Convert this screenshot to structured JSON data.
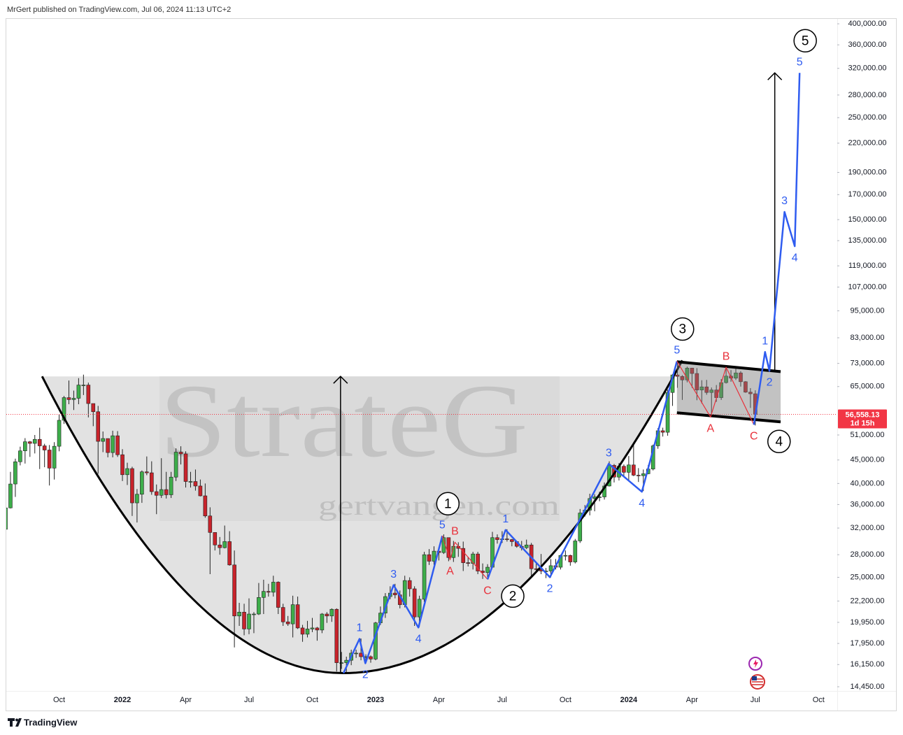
{
  "chart_data": {
    "type": "candlestick",
    "byline": "MrGert published on TradingView.com, Jul 06, 2024 11:13 UTC+2",
    "branding": "TradingView",
    "watermark": {
      "title": "StrateG",
      "url": "gertvangen.com"
    },
    "log": true,
    "grid": false,
    "up_color": "#3dae4a",
    "down_color": "#c8232b",
    "wick_color": "#222222",
    "ylim": [
      14150,
      410000
    ],
    "yticks": [
      {
        "value": 400000,
        "label": "400,000.00"
      },
      {
        "value": 360000,
        "label": "360,000.00"
      },
      {
        "value": 320000,
        "label": "320,000.00"
      },
      {
        "value": 280000,
        "label": "280,000.00"
      },
      {
        "value": 250000,
        "label": "250,000.00"
      },
      {
        "value": 220000,
        "label": "220,000.00"
      },
      {
        "value": 190000,
        "label": "190,000.00"
      },
      {
        "value": 170000,
        "label": "170,000.00"
      },
      {
        "value": 150000,
        "label": "150,000.00"
      },
      {
        "value": 135000,
        "label": "135,000.00"
      },
      {
        "value": 119000,
        "label": "119,000.00"
      },
      {
        "value": 107000,
        "label": "107,000.00"
      },
      {
        "value": 95000,
        "label": "95,000.00"
      },
      {
        "value": 83000,
        "label": "83,000.00"
      },
      {
        "value": 73000,
        "label": "73,000.00"
      },
      {
        "value": 65000,
        "label": "65,000.00"
      },
      {
        "value": 51000,
        "label": "51,000.00"
      },
      {
        "value": 45000,
        "label": "45,000.00"
      },
      {
        "value": 40000,
        "label": "40,000.00"
      },
      {
        "value": 36000,
        "label": "36,000.00"
      },
      {
        "value": 32000,
        "label": "32,000.00"
      },
      {
        "value": 28000,
        "label": "28,000.00"
      },
      {
        "value": 25000,
        "label": "25,000.00"
      },
      {
        "value": 22200,
        "label": "22,200.00"
      },
      {
        "value": 19950,
        "label": "19,950.00"
      },
      {
        "value": 17950,
        "label": "17,950.00"
      },
      {
        "value": 16150,
        "label": "16,150.00"
      },
      {
        "value": 14450,
        "label": "14,450.00"
      }
    ],
    "categories": [
      null,
      null,
      null,
      null,
      null,
      null,
      null,
      null,
      null,
      null,
      null,
      "Oct",
      null,
      null,
      null,
      null,
      null,
      null,
      null,
      null,
      null,
      null,
      null,
      null,
      "2022",
      null,
      null,
      null,
      null,
      null,
      null,
      null,
      null,
      null,
      null,
      null,
      null,
      "Apr",
      null,
      null,
      null,
      null,
      null,
      null,
      null,
      null,
      null,
      null,
      null,
      null,
      "Jul",
      null,
      null,
      null,
      null,
      null,
      null,
      null,
      null,
      null,
      null,
      null,
      null,
      "Oct",
      null,
      null,
      null,
      null,
      null,
      null,
      null,
      null,
      null,
      null,
      null,
      null,
      "2023",
      null,
      null,
      null,
      null,
      null,
      null,
      null,
      null,
      null,
      null,
      null,
      null,
      "Apr",
      null,
      null,
      null,
      null,
      null,
      null,
      null,
      null,
      null,
      null,
      null,
      null,
      "Jul",
      null,
      null,
      null,
      null,
      null,
      null,
      null,
      null,
      null,
      null,
      null,
      null,
      "Oct",
      null,
      null,
      null,
      null,
      null,
      null,
      null,
      null,
      null,
      null,
      null,
      null,
      "2024",
      null,
      null,
      null,
      null,
      null,
      null,
      null,
      null,
      null,
      null,
      null,
      null,
      "Apr",
      null,
      null,
      null,
      null,
      null,
      null,
      null,
      null,
      null,
      null,
      null,
      null,
      "Jul",
      null,
      null,
      null,
      null,
      null,
      null,
      null,
      null,
      null,
      null,
      null,
      null,
      "Oct",
      null,
      null,
      null,
      null
    ],
    "candles": {
      "open": [
        31800,
        35400,
        39900,
        44600,
        47100,
        49300,
        48900,
        49900,
        48300,
        47300,
        43200,
        48200,
        54900,
        61500,
        60900,
        61300,
        65500,
        65500,
        59700,
        57300,
        49400,
        50100,
        46700,
        50800,
        46200,
        41800,
        43100,
        36300,
        37900,
        42400,
        42200,
        38400,
        37700,
        38800,
        37800,
        41300,
        46800,
        46400,
        40400,
        40400,
        39500,
        37600,
        34000,
        31300,
        29400,
        29000,
        29900,
        26600,
        20600,
        21000,
        19300,
        20800,
        20800,
        22600,
        23300,
        23200,
        24400,
        21500,
        20000,
        19800,
        21800,
        19400,
        18800,
        19300,
        19400,
        19200,
        20800,
        20600,
        21300,
        16300,
        16300,
        16500,
        17100,
        17100,
        16800,
        16800,
        16600,
        19900,
        20900,
        22700,
        23100,
        22900,
        21800,
        24600,
        23600,
        20500,
        22400,
        28000,
        27100,
        28500,
        28300,
        30500,
        27600,
        29200,
        28900,
        26900,
        26800,
        28100,
        25800,
        25600,
        26300,
        30500,
        30200,
        30300,
        30200,
        29900,
        29200,
        29000,
        29400,
        26100,
        26000,
        25800,
        25800,
        26500,
        26300,
        27900,
        27900,
        27000,
        30000,
        34500,
        35000,
        37100,
        37400,
        37400,
        39500,
        43800,
        41300,
        43600,
        42300,
        43900,
        41700,
        41600,
        42000,
        43000,
        48300,
        52100,
        51700,
        63100,
        68900,
        68400,
        67200,
        71300,
        69400,
        63900,
        64900,
        63100,
        63900,
        61500,
        66300,
        68500,
        67800,
        69600,
        66600,
        63200,
        62700,
        null,
        null,
        null,
        null,
        null,
        null,
        null,
        null,
        null,
        null,
        null,
        null,
        null,
        null,
        null,
        null,
        null
      ],
      "high": [
        36400,
        42400,
        45300,
        48100,
        50200,
        49500,
        51000,
        52900,
        48800,
        48500,
        49200,
        56500,
        62000,
        67000,
        63700,
        67800,
        69000,
        66300,
        59500,
        59000,
        51900,
        50100,
        52100,
        52000,
        47500,
        44400,
        43500,
        38900,
        42700,
        45800,
        44700,
        39800,
        45400,
        42400,
        42400,
        47700,
        48200,
        47000,
        42400,
        42900,
        40800,
        40000,
        35500,
        31300,
        30600,
        32400,
        31500,
        28600,
        22000,
        21900,
        22500,
        21000,
        24300,
        24700,
        24200,
        25200,
        24500,
        21900,
        20600,
        22800,
        22700,
        19700,
        20100,
        20400,
        19500,
        20900,
        21000,
        21400,
        21400,
        17200,
        16800,
        17400,
        17400,
        18400,
        17000,
        16900,
        20000,
        21600,
        23100,
        23900,
        24200,
        23400,
        25200,
        25000,
        23900,
        22800,
        28400,
        28800,
        29200,
        29100,
        31000,
        30500,
        30000,
        29800,
        29900,
        27700,
        28400,
        28400,
        26800,
        26700,
        31400,
        31000,
        31500,
        31800,
        30300,
        29900,
        30000,
        30200,
        29700,
        26800,
        28100,
        26200,
        27400,
        27400,
        28000,
        28600,
        28000,
        30300,
        35200,
        35900,
        38000,
        37900,
        38400,
        40200,
        44700,
        44100,
        44300,
        44000,
        45900,
        49000,
        43200,
        42900,
        43900,
        48600,
        52800,
        52900,
        64000,
        69200,
        73800,
        68800,
        71800,
        71400,
        71300,
        67100,
        67200,
        64700,
        65500,
        67500,
        71900,
        70600,
        71900,
        70200,
        66800,
        64500,
        63800,
        null,
        null,
        null,
        null,
        null,
        null,
        null,
        null,
        null,
        null,
        null,
        null,
        null,
        null,
        null,
        null,
        null
      ],
      "low": [
        29300,
        35300,
        37400,
        43800,
        44200,
        45700,
        46500,
        43000,
        43400,
        39600,
        40800,
        47000,
        53900,
        59500,
        57800,
        59500,
        62300,
        55700,
        53300,
        42000,
        46800,
        45600,
        45600,
        45700,
        40500,
        39700,
        34000,
        32900,
        36300,
        41700,
        37800,
        34300,
        37200,
        37100,
        37200,
        40500,
        44000,
        39200,
        39200,
        38600,
        37500,
        33700,
        25400,
        28600,
        28000,
        28900,
        26500,
        17600,
        19600,
        18700,
        18800,
        18900,
        20700,
        20800,
        22700,
        22700,
        20800,
        19600,
        19600,
        18500,
        19300,
        18100,
        18500,
        19000,
        18200,
        18900,
        19900,
        20000,
        15600,
        15800,
        15500,
        16100,
        16700,
        16500,
        16300,
        16300,
        16500,
        19700,
        20400,
        22400,
        22500,
        21400,
        21500,
        22700,
        19600,
        19500,
        22100,
        26600,
        26600,
        27200,
        28100,
        27100,
        27000,
        27700,
        25800,
        26400,
        26000,
        25400,
        24800,
        25000,
        26200,
        29600,
        29700,
        29900,
        29200,
        29000,
        28600,
        28800,
        25200,
        25800,
        25400,
        24900,
        25000,
        26000,
        26000,
        27200,
        26500,
        26800,
        29700,
        33900,
        34100,
        34800,
        36600,
        36900,
        39400,
        40200,
        40600,
        41400,
        40700,
        41500,
        40300,
        38500,
        41900,
        42700,
        47600,
        50600,
        50800,
        59000,
        64600,
        60800,
        66400,
        64600,
        60700,
        59700,
        62400,
        56600,
        60200,
        60800,
        66000,
        66600,
        67200,
        65000,
        63000,
        58400,
        53500,
        null,
        null,
        null,
        null,
        null,
        null,
        null,
        null,
        null,
        null,
        null,
        null,
        null,
        null,
        null,
        null,
        null
      ],
      "close": [
        35400,
        39900,
        44600,
        47100,
        49300,
        48900,
        49900,
        48300,
        47300,
        43200,
        48200,
        54900,
        61500,
        60900,
        61300,
        65500,
        65500,
        59700,
        57300,
        49400,
        50100,
        46700,
        50800,
        46200,
        41800,
        43100,
        36300,
        37900,
        42400,
        42200,
        38400,
        37700,
        38800,
        37800,
        41300,
        46800,
        46400,
        40400,
        40400,
        39500,
        37600,
        34000,
        31300,
        29400,
        29000,
        29900,
        26600,
        20600,
        21000,
        19300,
        20800,
        20800,
        22600,
        23300,
        23200,
        24400,
        21500,
        20000,
        19800,
        21800,
        19400,
        18800,
        19300,
        19400,
        19200,
        20800,
        20600,
        21300,
        16300,
        16300,
        16500,
        17100,
        17100,
        16800,
        16800,
        16600,
        19900,
        20900,
        22700,
        23100,
        22900,
        21800,
        24600,
        23600,
        20500,
        22400,
        28000,
        27100,
        28500,
        28300,
        30500,
        27600,
        29200,
        28900,
        26900,
        26800,
        28100,
        25800,
        25600,
        26300,
        30500,
        30200,
        30300,
        30200,
        29900,
        29200,
        29000,
        29400,
        26100,
        26000,
        25800,
        25800,
        26500,
        26300,
        27900,
        27900,
        27000,
        30000,
        34500,
        35000,
        37100,
        37400,
        37400,
        39500,
        43800,
        41300,
        43600,
        42300,
        43900,
        41700,
        41600,
        42000,
        43000,
        48300,
        52100,
        51700,
        63100,
        68900,
        68400,
        67200,
        71300,
        69400,
        63900,
        64900,
        63100,
        63900,
        61500,
        66300,
        68500,
        67800,
        69600,
        66600,
        63200,
        62700,
        56558.13,
        null,
        null,
        null,
        null,
        null,
        null,
        null,
        null,
        null,
        null,
        null,
        null,
        null,
        null,
        null,
        null,
        null
      ]
    },
    "price_line": {
      "value": 56558.13,
      "label": "56,558.13",
      "countdown": "1d 15h",
      "color": "#f23645"
    },
    "cup": {
      "x": [
        7.5,
        69.4,
        139
      ],
      "values": [
        68400,
        15470,
        74100
      ],
      "color": "#000000",
      "fill": "#e2e2e2"
    },
    "channel": {
      "x": [
        137.9,
        159.2
      ],
      "upper": [
        73600,
        70060
      ],
      "lower": [
        57000,
        54460
      ]
    },
    "arrows": [
      {
        "x": 68.8,
        "values": [
          15470,
          68400
        ]
      },
      {
        "x": 158.0,
        "values": [
          70060,
          312800
        ]
      }
    ],
    "waves": [
      {
        "color": "#2f5cf0",
        "x": [
          69.4,
          72.7,
          73.9,
          79.7,
          84.8,
          89.7
        ],
        "values": [
          15470,
          18370,
          16250,
          24050,
          19440,
          30770
        ],
        "labels": [
          null,
          "1",
          "2",
          "3",
          "4",
          "5"
        ],
        "degree": "1"
      },
      {
        "color": "#e8303a",
        "x": [
          89.7,
          91.3,
          92.3,
          99.0
        ],
        "values": [
          30770,
          27300,
          29800,
          24750
        ],
        "labels": [
          null,
          "A",
          "B",
          "C"
        ],
        "degree": "2"
      },
      {
        "color": "#2f5cf0",
        "x": [
          99.0,
          102.7,
          111.8,
          123.9,
          130.7,
          137.9
        ],
        "values": [
          24750,
          31700,
          25010,
          44150,
          38370,
          73800
        ],
        "labels": [
          null,
          "1",
          "2",
          "3",
          "4",
          "5"
        ],
        "degree": "3"
      },
      {
        "color": "#e8303a",
        "x": [
          137.9,
          144.8,
          148.0,
          153.7
        ],
        "values": [
          73800,
          55800,
          71600,
          53700
        ],
        "labels": [
          null,
          "A",
          "B",
          "C"
        ],
        "degree": "4"
      },
      {
        "color": "#2f5cf0",
        "x": [
          153.7,
          156.0,
          156.9,
          160.0,
          162.1,
          163.1
        ],
        "values": [
          53700,
          77300,
          70300,
          155900,
          131300,
          312800
        ],
        "labels": [
          null,
          "1",
          "2",
          "3",
          "4",
          "5"
        ],
        "degree": "5"
      }
    ]
  }
}
